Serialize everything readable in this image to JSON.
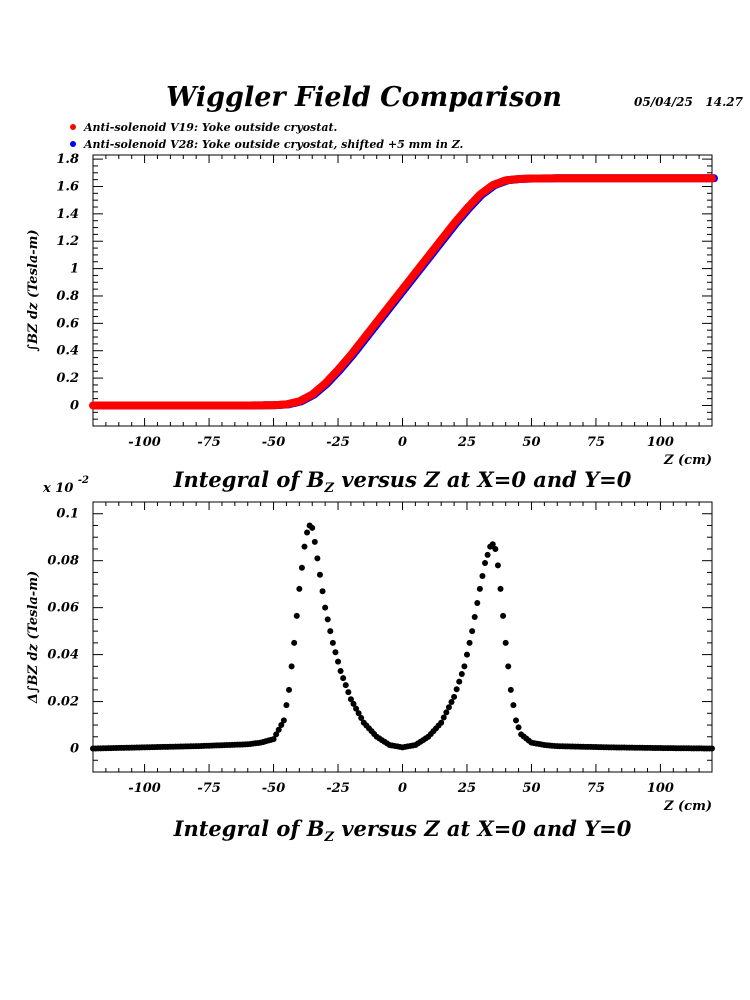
{
  "header": {
    "title": "Wiggler Field Comparison",
    "datestamp": "05/04/25   14.27"
  },
  "legend": [
    {
      "label": "Anti-solenoid V19: Yoke outside cryostat.",
      "color": "#ff0000"
    },
    {
      "label": "Anti-solenoid V28: Yoke outside cryostat, shifted +5 mm in Z.",
      "color": "#0000ff"
    }
  ],
  "plots": {
    "top": {
      "title_pre": "Integral of B",
      "title_sub": "Z",
      "title_post": " versus Z at X=0 and Y=0"
    },
    "bottom": {
      "title_pre": "Integral of B",
      "title_sub": "Z",
      "title_post": " versus Z at X=0 and Y=0",
      "exponent_label": "x 10",
      "exponent_value": "-2"
    }
  },
  "chart_data": [
    {
      "type": "scatter",
      "xlabel": "Z (cm)",
      "ylabel": "∫BZ dz  (Tesla-m)",
      "xlim": [
        -120,
        120
      ],
      "ylim": [
        -0.15,
        1.83
      ],
      "x_ticks": [
        -100,
        -75,
        -50,
        -25,
        0,
        25,
        50,
        75,
        100
      ],
      "y_ticks": [
        0,
        0.2,
        0.4,
        0.6,
        0.8,
        1,
        1.2,
        1.4,
        1.6,
        1.8
      ],
      "y_tick_labels": [
        "0",
        "0.2",
        "0.4",
        "0.6",
        "0.8",
        "1",
        "1.2",
        "1.4",
        "1.6",
        "1.8"
      ],
      "series": [
        {
          "name": "Anti-solenoid V28: Yoke outside cryostat, shifted +5 mm in Z.",
          "color": "#0000ff",
          "x": [
            -120,
            -100,
            -80,
            -60,
            -50,
            -45,
            -40,
            -35,
            -30,
            -25,
            -20,
            -15,
            -10,
            -5,
            0,
            5,
            10,
            15,
            20,
            25,
            30,
            35,
            40,
            45,
            50,
            60,
            80,
            100,
            120
          ],
          "y": [
            0.0,
            0.0,
            0.0,
            0.0,
            0.002,
            0.008,
            0.03,
            0.08,
            0.16,
            0.26,
            0.37,
            0.49,
            0.61,
            0.73,
            0.85,
            0.97,
            1.09,
            1.21,
            1.33,
            1.44,
            1.54,
            1.61,
            1.645,
            1.655,
            1.658,
            1.66,
            1.66,
            1.66,
            1.66
          ]
        },
        {
          "name": "Anti-solenoid V19: Yoke outside cryostat.",
          "color": "#ff0000",
          "x": [
            -120,
            -100,
            -80,
            -60,
            -50,
            -45,
            -40,
            -35,
            -30,
            -25,
            -20,
            -15,
            -10,
            -5,
            0,
            5,
            10,
            15,
            20,
            25,
            30,
            35,
            40,
            45,
            50,
            60,
            80,
            100,
            120
          ],
          "y": [
            0.0,
            0.0,
            0.0,
            0.0,
            0.002,
            0.008,
            0.03,
            0.08,
            0.16,
            0.26,
            0.37,
            0.49,
            0.61,
            0.73,
            0.85,
            0.97,
            1.09,
            1.21,
            1.33,
            1.44,
            1.54,
            1.61,
            1.645,
            1.655,
            1.658,
            1.66,
            1.66,
            1.66,
            1.66
          ]
        }
      ]
    },
    {
      "type": "scatter",
      "xlabel": "Z (cm)",
      "ylabel": "Δ∫BZ dz  (Tesla-m)",
      "xlim": [
        -120,
        120
      ],
      "ylim": [
        -0.01,
        0.105
      ],
      "x_ticks": [
        -100,
        -75,
        -50,
        -25,
        0,
        25,
        50,
        75,
        100
      ],
      "y_ticks": [
        0,
        0.02,
        0.04,
        0.06,
        0.08,
        0.1
      ],
      "y_tick_labels": [
        "0",
        "0.02",
        "0.04",
        "0.06",
        "0.08",
        "0.1"
      ],
      "series": [
        {
          "color": "#000000",
          "x": [
            -120,
            -100,
            -80,
            -60,
            -55,
            -50,
            -46,
            -44,
            -42,
            -40,
            -38,
            -37,
            -36,
            -35,
            -34,
            -32,
            -30,
            -27,
            -24,
            -20,
            -15,
            -10,
            -5,
            0,
            5,
            10,
            15,
            20,
            24,
            27,
            30,
            32,
            34,
            35,
            36,
            37,
            38,
            40,
            42,
            44,
            46,
            50,
            55,
            60,
            80,
            100,
            120
          ],
          "y": [
            0.0,
            0.0005,
            0.001,
            0.0018,
            0.0025,
            0.004,
            0.012,
            0.025,
            0.045,
            0.068,
            0.086,
            0.092,
            0.095,
            0.094,
            0.088,
            0.074,
            0.06,
            0.045,
            0.033,
            0.021,
            0.011,
            0.005,
            0.0015,
            0.0005,
            0.0015,
            0.005,
            0.011,
            0.022,
            0.035,
            0.05,
            0.068,
            0.079,
            0.086,
            0.087,
            0.085,
            0.078,
            0.068,
            0.045,
            0.025,
            0.012,
            0.006,
            0.0025,
            0.0015,
            0.001,
            0.0005,
            0.0002,
            0.0
          ]
        }
      ]
    }
  ]
}
